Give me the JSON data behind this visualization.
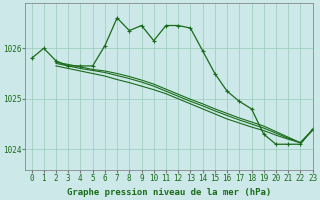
{
  "bg_color": "#cce8e8",
  "grid_color": "#99ccbb",
  "line_color": "#1a6b1a",
  "marker_color": "#1a6b1a",
  "xlabel": "Graphe pression niveau de la mer (hPa)",
  "xlim": [
    -0.5,
    23
  ],
  "ylim": [
    1023.6,
    1026.9
  ],
  "yticks": [
    1024,
    1025,
    1026
  ],
  "xticks": [
    0,
    1,
    2,
    3,
    4,
    5,
    6,
    7,
    8,
    9,
    10,
    11,
    12,
    13,
    14,
    15,
    16,
    17,
    18,
    19,
    20,
    21,
    22,
    23
  ],
  "series": [
    {
      "x": [
        0,
        1,
        2,
        3,
        4,
        5,
        6,
        7,
        8,
        9,
        10,
        11,
        12,
        13,
        14,
        15,
        16,
        17,
        18,
        19,
        20,
        21,
        22,
        23
      ],
      "y": [
        1025.8,
        1026.0,
        1025.75,
        1025.65,
        1025.65,
        1025.65,
        1026.05,
        1026.6,
        1026.35,
        1026.45,
        1026.15,
        1026.45,
        1026.45,
        1026.4,
        1025.95,
        1025.5,
        1025.15,
        1024.95,
        1024.8,
        1024.3,
        1024.1,
        1024.1,
        1024.1,
        1024.4
      ],
      "marker": true,
      "lw": 0.9
    },
    {
      "x": [
        2,
        3,
        4,
        5,
        6,
        7,
        8,
        9,
        10,
        11,
        12,
        13,
        14,
        15,
        16,
        17,
        18,
        19,
        20,
        21,
        22,
        23
      ],
      "y": [
        1025.65,
        1025.6,
        1025.55,
        1025.5,
        1025.45,
        1025.38,
        1025.32,
        1025.25,
        1025.18,
        1025.1,
        1025.0,
        1024.9,
        1024.8,
        1024.7,
        1024.6,
        1024.52,
        1024.44,
        1024.37,
        1024.28,
        1024.2,
        1024.13,
        1024.38
      ],
      "marker": false,
      "lw": 0.8
    },
    {
      "x": [
        2,
        3,
        4,
        5,
        6,
        7,
        8,
        9,
        10,
        11,
        12,
        13,
        14,
        15,
        16,
        17,
        18,
        19,
        20,
        21,
        22,
        23
      ],
      "y": [
        1025.7,
        1025.65,
        1025.6,
        1025.56,
        1025.52,
        1025.46,
        1025.4,
        1025.33,
        1025.25,
        1025.15,
        1025.05,
        1024.95,
        1024.86,
        1024.76,
        1024.67,
        1024.58,
        1024.5,
        1024.42,
        1024.32,
        1024.22,
        1024.13,
        1024.38
      ],
      "marker": false,
      "lw": 0.8
    },
    {
      "x": [
        2,
        3,
        4,
        5,
        6,
        7,
        8,
        9,
        10,
        11,
        12,
        13,
        14,
        15,
        16,
        17,
        18,
        19,
        20,
        21,
        22,
        23
      ],
      "y": [
        1025.72,
        1025.68,
        1025.63,
        1025.58,
        1025.55,
        1025.5,
        1025.44,
        1025.37,
        1025.29,
        1025.19,
        1025.09,
        1024.99,
        1024.9,
        1024.8,
        1024.71,
        1024.62,
        1024.54,
        1024.46,
        1024.35,
        1024.24,
        1024.13,
        1024.38
      ],
      "marker": false,
      "lw": 0.8
    }
  ],
  "xlabel_fontsize": 6.5,
  "tick_fontsize": 5.5
}
